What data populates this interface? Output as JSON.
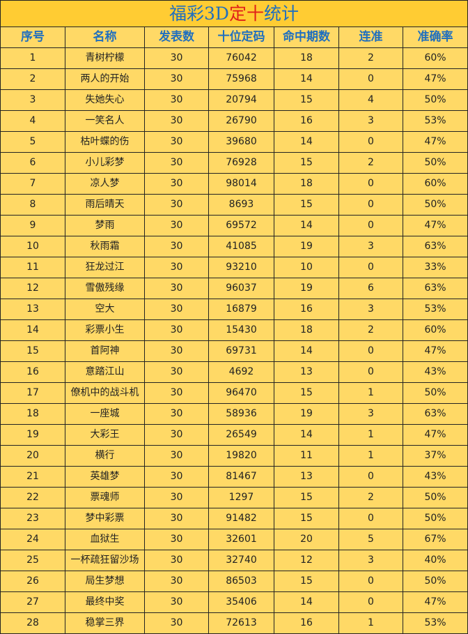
{
  "title": {
    "before": "福彩3D",
    "highlight": "定十",
    "after": "统计"
  },
  "table": {
    "header": [
      "序号",
      "名称",
      "发表数",
      "十位定码",
      "命中期数",
      "连准",
      "准确率"
    ],
    "rows": [
      [
        1,
        "青树柠檬",
        30,
        76042,
        18,
        2,
        "60%"
      ],
      [
        2,
        "两人的开始",
        30,
        75968,
        14,
        0,
        "47%"
      ],
      [
        3,
        "失她失心",
        30,
        20794,
        15,
        4,
        "50%"
      ],
      [
        4,
        "一笑名人",
        30,
        26790,
        16,
        3,
        "53%"
      ],
      [
        5,
        "枯叶蝶的伤",
        30,
        39680,
        14,
        0,
        "47%"
      ],
      [
        6,
        "小儿彩梦",
        30,
        76928,
        15,
        2,
        "50%"
      ],
      [
        7,
        "凉人梦",
        30,
        98014,
        18,
        0,
        "60%"
      ],
      [
        8,
        "雨后晴天",
        30,
        8693,
        15,
        0,
        "50%"
      ],
      [
        9,
        "梦雨",
        30,
        69572,
        14,
        0,
        "47%"
      ],
      [
        10,
        "秋雨霜",
        30,
        41085,
        19,
        3,
        "63%"
      ],
      [
        11,
        "狂龙过江",
        30,
        93210,
        10,
        0,
        "33%"
      ],
      [
        12,
        "雪傲残缘",
        30,
        96037,
        19,
        6,
        "63%"
      ],
      [
        13,
        "空大",
        30,
        16879,
        16,
        3,
        "53%"
      ],
      [
        14,
        "彩票小生",
        30,
        15430,
        18,
        2,
        "60%"
      ],
      [
        15,
        "首阿神",
        30,
        69731,
        14,
        0,
        "47%"
      ],
      [
        16,
        "意踏江山",
        30,
        4692,
        13,
        0,
        "43%"
      ],
      [
        17,
        "僚机中的战斗机",
        30,
        96470,
        15,
        1,
        "50%"
      ],
      [
        18,
        "一座城",
        30,
        58936,
        19,
        3,
        "63%"
      ],
      [
        19,
        "大彩王",
        30,
        26549,
        14,
        1,
        "47%"
      ],
      [
        20,
        "横行",
        30,
        19820,
        11,
        1,
        "37%"
      ],
      [
        21,
        "英雄梦",
        30,
        81467,
        13,
        0,
        "43%"
      ],
      [
        22,
        "票魂师",
        30,
        1297,
        15,
        2,
        "50%"
      ],
      [
        23,
        "梦中彩票",
        30,
        91482,
        15,
        0,
        "50%"
      ],
      [
        24,
        "血狱生",
        30,
        32601,
        20,
        5,
        "67%"
      ],
      [
        25,
        "一杯疏狂留沙场",
        30,
        32740,
        12,
        3,
        "40%"
      ],
      [
        26,
        "局生梦想",
        30,
        86503,
        15,
        0,
        "50%"
      ],
      [
        27,
        "最终中奖",
        30,
        35406,
        14,
        0,
        "47%"
      ],
      [
        28,
        "稳掌三界",
        30,
        72613,
        16,
        1,
        "53%"
      ]
    ]
  }
}
